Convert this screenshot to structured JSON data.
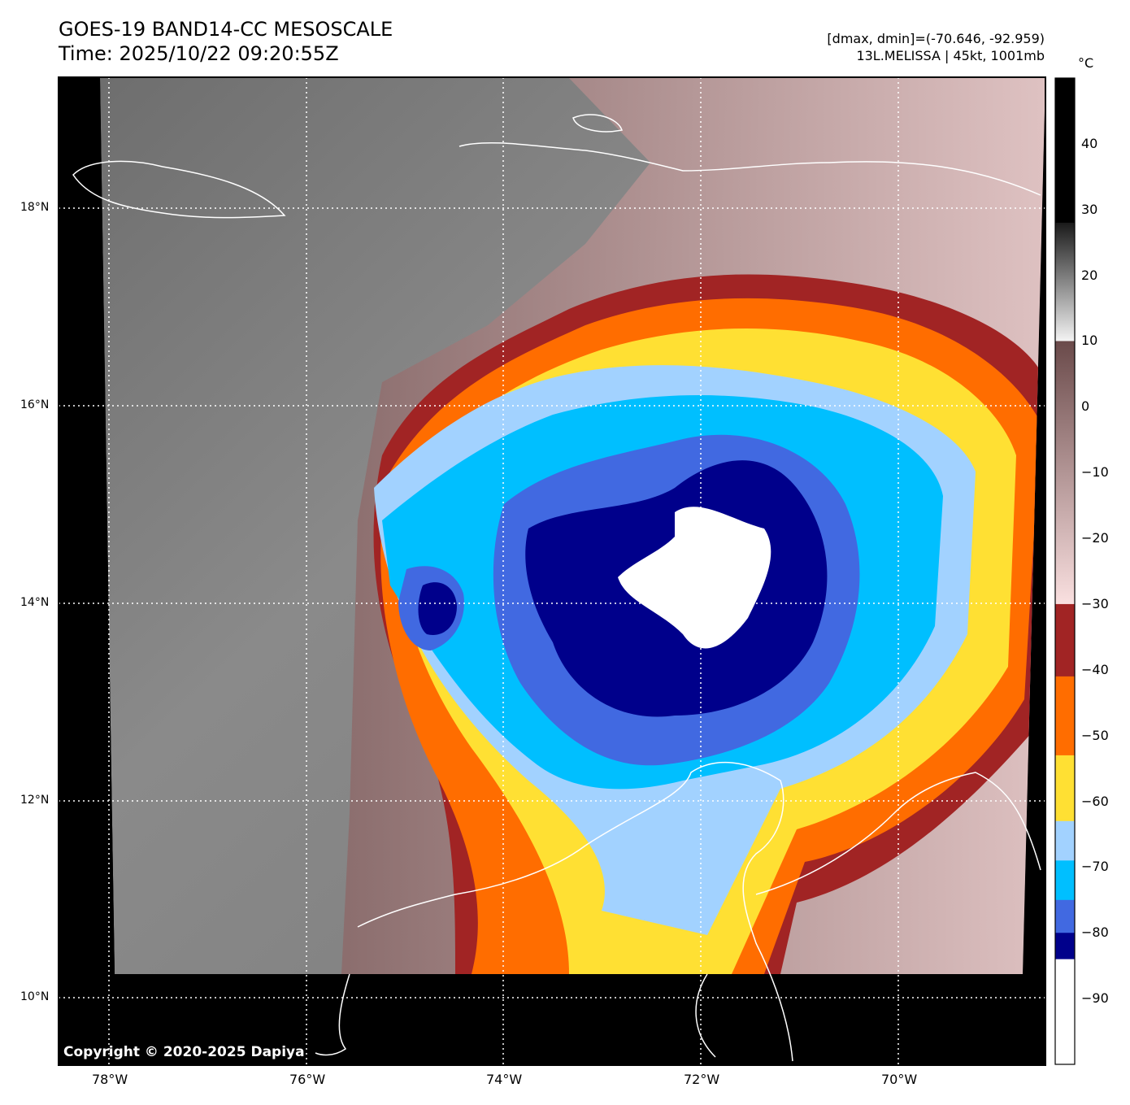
{
  "header": {
    "title_line1": "GOES-19 BAND14-CC MESOSCALE",
    "title_line2": "Time: 2025/10/22 09:20:55Z",
    "range_text": "[dmax, dmin]=(-70.646, -92.959)",
    "storm_text": "13L.MELISSA | 45kt, 1001mb"
  },
  "map": {
    "lon_labels": [
      "78°W",
      "76°W",
      "74°W",
      "72°W",
      "70°W"
    ],
    "lat_labels": [
      "18°N",
      "16°N",
      "14°N",
      "12°N",
      "10°N"
    ],
    "copyright": "Copyright © 2020-2025 Dapiya"
  },
  "colorbar": {
    "unit": "°C",
    "range": [
      -100,
      50
    ],
    "tick_labels": [
      "40",
      "30",
      "20",
      "10",
      "0",
      "−10",
      "−20",
      "−30",
      "−40",
      "−50",
      "−60",
      "−70",
      "−80",
      "−90"
    ],
    "bands": [
      {
        "from": 28,
        "to": 50,
        "color": "#000000"
      },
      {
        "from": 10,
        "to": 28,
        "color_top": "#1a1a1a",
        "color_bottom": "#f4f4f4"
      },
      {
        "from": -30,
        "to": 10,
        "color_top": "#6a4a4a",
        "color_bottom": "#fae0e0"
      },
      {
        "from": -41,
        "to": -30,
        "color": "#a12424"
      },
      {
        "from": -53,
        "to": -41,
        "color": "#ff6d00"
      },
      {
        "from": -63,
        "to": -53,
        "color": "#ffe033"
      },
      {
        "from": -69,
        "to": -63,
        "color": "#a2d2ff"
      },
      {
        "from": -75,
        "to": -69,
        "color": "#00bfff"
      },
      {
        "from": -80,
        "to": -75,
        "color": "#4169e1"
      },
      {
        "from": -84,
        "to": -80,
        "color": "#00008b"
      },
      {
        "from": -100,
        "to": -84,
        "color": "#ffffff"
      }
    ]
  }
}
